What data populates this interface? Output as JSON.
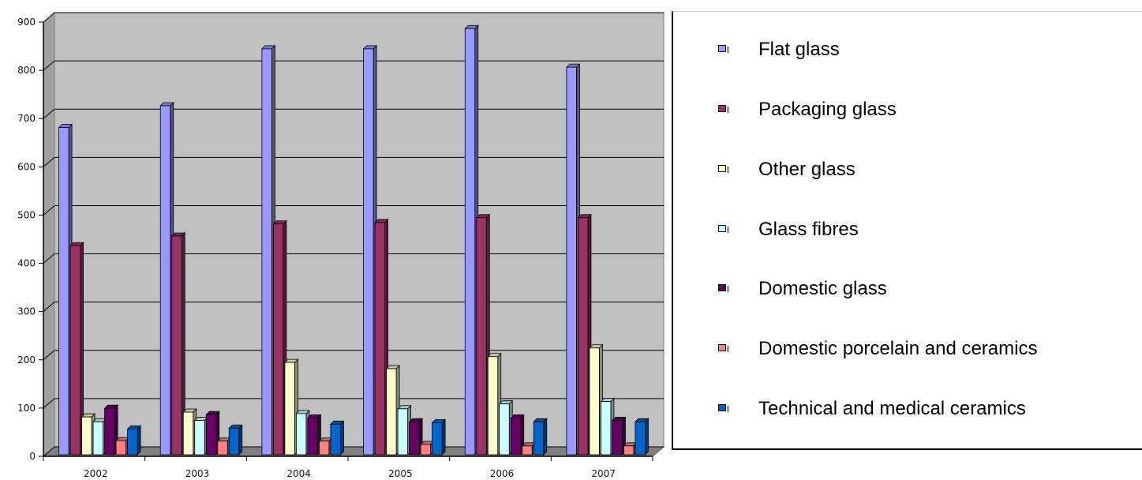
{
  "chart_data": {
    "type": "bar",
    "title": "",
    "xlabel": "",
    "ylabel": "",
    "ylim": [
      0,
      900
    ],
    "yticks": [
      "0",
      "100",
      "200",
      "300",
      "400",
      "500",
      "600",
      "700",
      "800",
      "900"
    ],
    "grid": true,
    "legend_position": "right",
    "categories": [
      "2002",
      "2003",
      "2004",
      "2005",
      "2006",
      "2007"
    ],
    "series": [
      {
        "name": "Flat glass",
        "color": "#9999ff",
        "values": [
          675,
          720,
          838,
          838,
          880,
          800
        ]
      },
      {
        "name": "Packaging glass",
        "color": "#993366",
        "values": [
          430,
          450,
          475,
          478,
          488,
          488
        ]
      },
      {
        "name": "Other glass",
        "color": "#ffffcc",
        "values": [
          75,
          85,
          188,
          175,
          200,
          218
        ]
      },
      {
        "name": "Glass fibres",
        "color": "#ccffff",
        "values": [
          65,
          68,
          82,
          92,
          102,
          107
        ]
      },
      {
        "name": "Domestic glass",
        "color": "#660066",
        "values": [
          93,
          80,
          73,
          65,
          73,
          68
        ]
      },
      {
        "name": "Domestic porcelain and ceramics",
        "color": "#ff8080",
        "values": [
          26,
          25,
          25,
          18,
          15,
          15
        ]
      },
      {
        "name": "Technical and medical ceramics",
        "color": "#0066cc",
        "values": [
          50,
          52,
          60,
          63,
          65,
          65
        ]
      }
    ]
  }
}
